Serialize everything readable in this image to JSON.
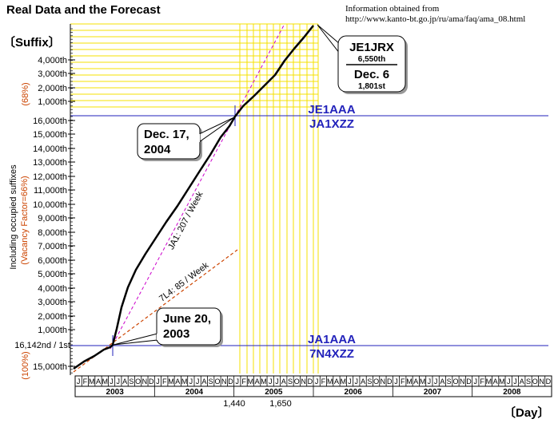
{
  "chart_data": {
    "type": "line",
    "title": "Real Data and the Forecast",
    "source_line1": "Information obtained from",
    "source_line2": "http://www.kanto-bt.go.jp/ru/ama/faq/ama_08.html",
    "ylabel": "〔Suffix〕",
    "xlabel": "〔Day〕",
    "y_side_label_main": "Including occupied suffixes",
    "y_side_label_sub": "(Vacancy Factor=66%)",
    "y_pct_top": "(68%)",
    "y_pct_bottom": "(100%)",
    "y_ticks_upper": [
      "4,000th",
      "3,000th",
      "2,000th",
      "1,000th"
    ],
    "y_ticks_middle": [
      "16,000th",
      "15,000th",
      "14,000th",
      "13,000th",
      "12,000th",
      "11,000th",
      "10,000th",
      "9,000th",
      "8,000th",
      "7,000th",
      "6,000th",
      "5,000th",
      "4,000th",
      "3,000th",
      "2,000th",
      "1,000th"
    ],
    "y_tick_start": "16,142nd / 1st",
    "y_tick_bottom": "15,000th",
    "month_letters": [
      "J",
      "F",
      "M",
      "A",
      "M",
      "J",
      "J",
      "A",
      "S",
      "O",
      "N",
      "D"
    ],
    "years": [
      "2003",
      "2004",
      "2005",
      "2006",
      "2007",
      "2008"
    ],
    "x_extra_labels": [
      "1,440",
      "1,650"
    ],
    "series": [
      {
        "name": "JA1: 207 / Week",
        "color": "#cc00cc",
        "style": "dashed"
      },
      {
        "name": "7L4: 85 / Week",
        "color": "#cc4400",
        "style": "dashed"
      }
    ],
    "actual_line_color": "#000000",
    "reference_lines": [
      {
        "label_top": "JE1AAA",
        "label_bottom": "JA1XZZ"
      },
      {
        "label_top": "JA1AAA",
        "label_bottom": "7N4XZZ"
      }
    ],
    "reference_color": "#2222bb",
    "forecast_line_color": "#f5e000",
    "annotations": [
      {
        "lines": [
          "June 20,",
          "2003"
        ]
      },
      {
        "lines": [
          "Dec. 17,",
          "2004"
        ]
      }
    ],
    "forecast_box": {
      "callsign": "JE1JRX",
      "rank_line": "6,550th",
      "date": "Dec. 6",
      "date_rank": "1,801st"
    }
  }
}
